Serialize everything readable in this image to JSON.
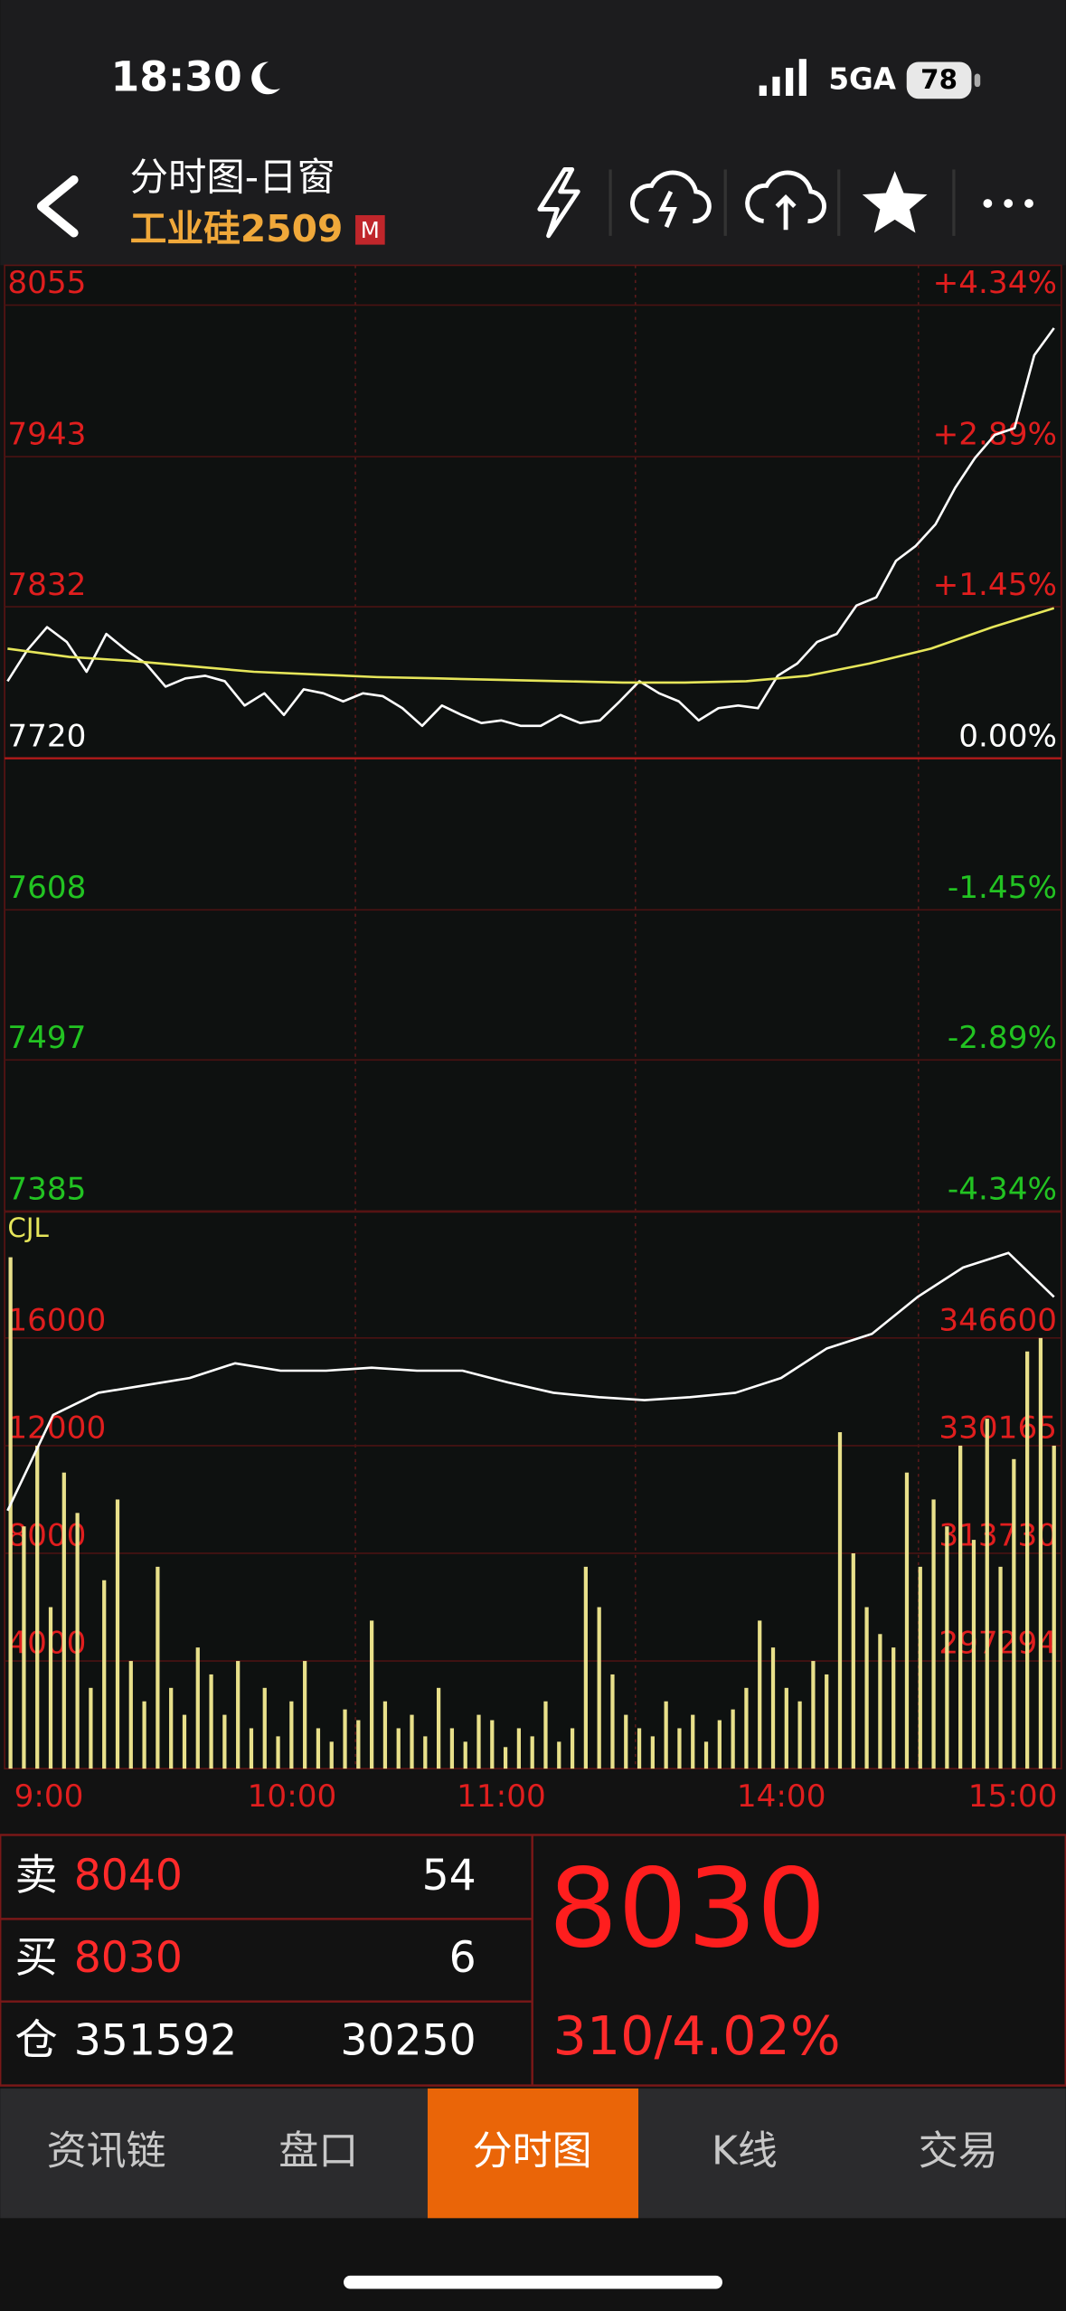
{
  "status_bar": {
    "time": "18:30",
    "network": "5GA",
    "battery": 78
  },
  "header": {
    "title": "分时图-日窗",
    "symbol": "工业硅2509",
    "badge": "M"
  },
  "chart_data": [
    {
      "type": "line",
      "ylim": [
        7385,
        8055
      ],
      "yticks": [
        7385,
        7497,
        7608,
        7720,
        7832,
        7943,
        8055
      ],
      "y2lim": [
        -4.34,
        4.34
      ],
      "y2ticks": [
        {
          "value": -4.34,
          "label": "-4.34%"
        },
        {
          "value": -2.89,
          "label": "-2.89%"
        },
        {
          "value": -1.45,
          "label": "-1.45%"
        },
        {
          "value": 0,
          "label": "0.00%"
        },
        {
          "value": 1.45,
          "label": "+1.45%"
        },
        {
          "value": 2.89,
          "label": "+2.89%"
        },
        {
          "value": 4.34,
          "label": "+4.34%"
        }
      ],
      "grid": true,
      "series": [
        {
          "color": "#ffffff",
          "values": [
            7777,
            7800,
            7817,
            7806,
            7784,
            7812,
            7800,
            7790,
            7773,
            7779,
            7781,
            7777,
            7759,
            7768,
            7752,
            7771,
            7768,
            7762,
            7768,
            7766,
            7757,
            7744,
            7759,
            7752,
            7746,
            7748,
            7744,
            7744,
            7752,
            7746,
            7748,
            7762,
            7777,
            7768,
            7762,
            7748,
            7757,
            7759,
            7757,
            7781,
            7790,
            7806,
            7812,
            7833,
            7839,
            7866,
            7877,
            7893,
            7920,
            7942,
            7959,
            7964,
            8018,
            8038
          ]
        },
        {
          "color": "#e6e65a",
          "values": [
            7801,
            7795,
            7792,
            7788,
            7784,
            7782,
            7780,
            7779,
            7778,
            7777,
            7776,
            7776,
            7777,
            7781,
            7790,
            7801,
            7817,
            7831
          ]
        }
      ]
    },
    {
      "type": "bar",
      "title": "CJL",
      "ylim": [
        0,
        20700
      ],
      "yticks": [
        4000,
        8000,
        12000,
        16000
      ],
      "y2lim": [
        280860,
        365960
      ],
      "y2ticks": [
        297294,
        313730,
        330165,
        346600
      ],
      "time_labels": [
        "9:00",
        "10:00",
        "11:00",
        "14:00",
        "15:00"
      ],
      "series": [
        {
          "type": "bar",
          "color": "#e8e08a",
          "values": [
            19000,
            9000,
            12000,
            6000,
            11000,
            9500,
            3000,
            7000,
            10000,
            4000,
            2500,
            7500,
            3000,
            2000,
            4500,
            3500,
            2000,
            4000,
            1500,
            3000,
            1200,
            2500,
            4000,
            1500,
            1000,
            2200,
            1800,
            5500,
            2500,
            1500,
            2000,
            1200,
            3000,
            1500,
            1000,
            2000,
            1800,
            800,
            1500,
            1200,
            2500,
            1000,
            1500,
            7500,
            6000,
            3500,
            2000,
            1500,
            1200,
            2500,
            1500,
            2000,
            1000,
            1800,
            2200,
            3000,
            5500,
            4500,
            3000,
            2500,
            4000,
            3500,
            12500,
            8000,
            6000,
            5000,
            4500,
            11000,
            7500,
            10000,
            9000,
            12000,
            8500,
            13000,
            7500,
            11500,
            15500,
            16000,
            12000
          ]
        },
        {
          "type": "line",
          "axis": "y2",
          "color": "#ffffff",
          "values": [
            320253,
            334884,
            338260,
            339386,
            340511,
            342762,
            341637,
            341637,
            342087,
            341637,
            341637,
            339836,
            338260,
            337585,
            337135,
            337585,
            338260,
            340511,
            345014,
            347265,
            352892,
            357394,
            359645,
            352892
          ]
        }
      ]
    }
  ],
  "order_book": {
    "rows": [
      [
        "卖",
        8040,
        54
      ],
      [
        "买",
        8030,
        6
      ],
      [
        "仓",
        351592,
        30250
      ]
    ]
  },
  "quote": {
    "price": 8030,
    "change": "310/4.02%"
  },
  "tabs": [
    "资讯链",
    "盘口",
    "分时图",
    "K线",
    "交易"
  ],
  "active_tab": 2
}
